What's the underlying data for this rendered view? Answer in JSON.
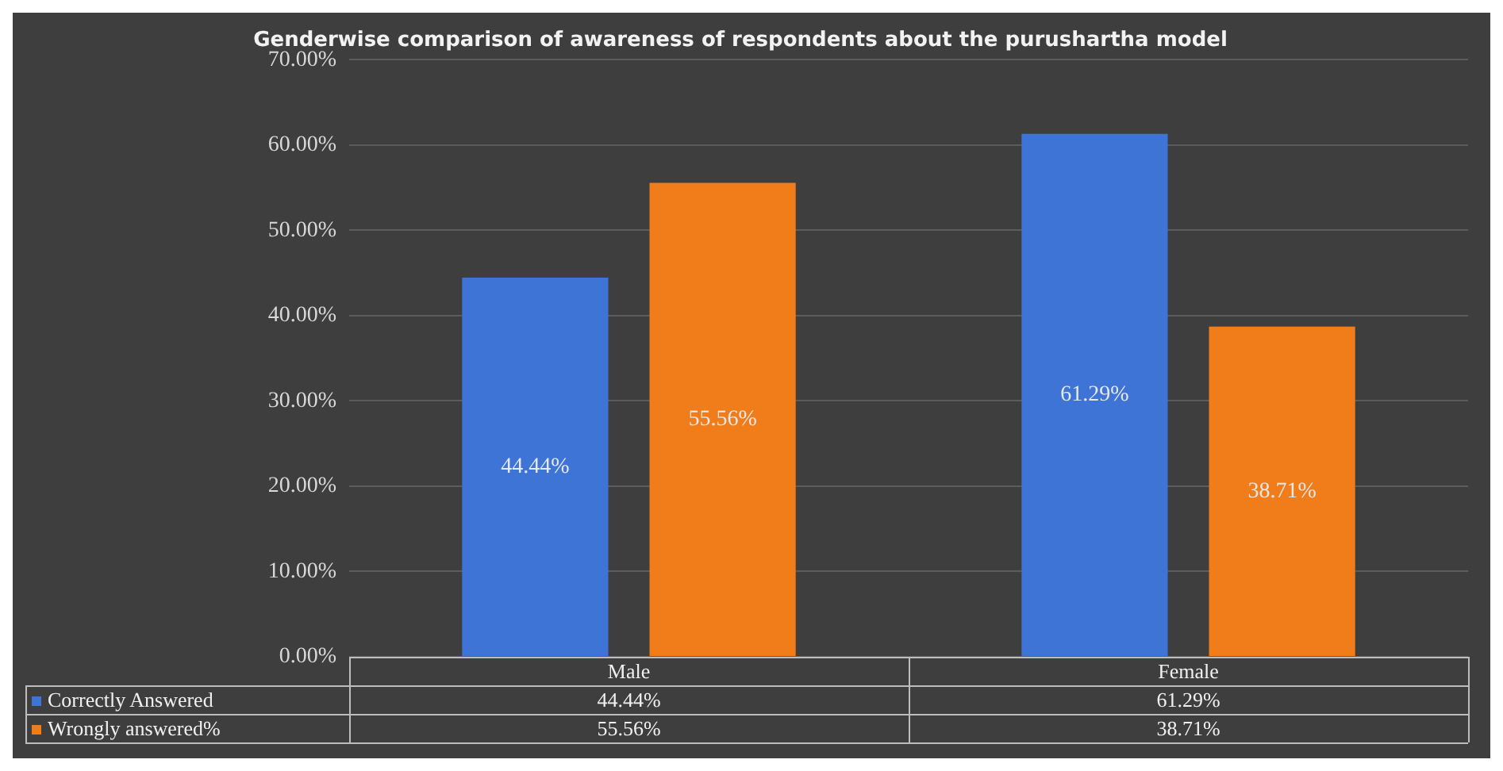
{
  "chart_data": {
    "type": "bar",
    "title": "Genderwise comparison of awareness of respondents about the purushartha model",
    "categories": [
      "Male",
      "Female"
    ],
    "series": [
      {
        "name": "Correctly Answered",
        "color": "#3d74d6",
        "values": [
          44.44,
          61.29
        ]
      },
      {
        "name": "Wrongly answered%",
        "color": "#f07c1a",
        "values": [
          55.56,
          38.71
        ]
      }
    ],
    "ylim": [
      0,
      70
    ],
    "yticks": [
      {
        "value": 0,
        "label": "0.00%"
      },
      {
        "value": 10,
        "label": "10.00%"
      },
      {
        "value": 20,
        "label": "20.00%"
      },
      {
        "value": 30,
        "label": "30.00%"
      },
      {
        "value": 40,
        "label": "40.00%"
      },
      {
        "value": 50,
        "label": "50.00%"
      },
      {
        "value": 60,
        "label": "60.00%"
      },
      {
        "value": 70,
        "label": "70.00%"
      }
    ],
    "value_labels": [
      [
        "44.44%",
        "61.29%"
      ],
      [
        "55.56%",
        "38.71%"
      ]
    ],
    "grid": "y",
    "legend": "bottom"
  }
}
